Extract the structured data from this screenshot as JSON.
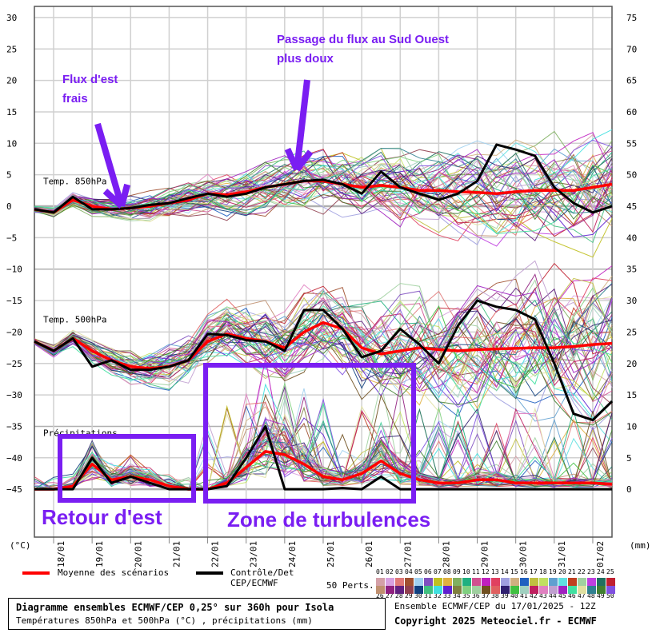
{
  "chart_data": {
    "type": "line",
    "title": "Diagramme ensembles ECMWF/CEP 0,25° sur 360h pour Isola",
    "subtitle": "Températures 850hPa et 500hPa (°C) , précipitations (mm)",
    "left_axis_label": "(°C)",
    "right_axis_label": "(mm)",
    "left_ticks": [
      30,
      25,
      20,
      15,
      10,
      5,
      0,
      -5,
      -10,
      -15,
      -20,
      -25,
      -30,
      -35,
      -40,
      -45
    ],
    "right_ticks": [
      75,
      70,
      65,
      60,
      55,
      50,
      45,
      40,
      35,
      30,
      25,
      20,
      15,
      10,
      5,
      0
    ],
    "ylim_left": [
      -52.5,
      31
    ],
    "x_labels": [
      "18/01",
      "19/01",
      "20/01",
      "21/01",
      "22/01",
      "23/01",
      "24/01",
      "25/01",
      "26/01",
      "27/01",
      "28/01",
      "29/01",
      "30/01",
      "31/01",
      "01/02"
    ],
    "x_step_hours": 12,
    "x_start": "17/01 12Z",
    "panel_labels": [
      "Temp. 850hPa",
      "Temp. 500hPa",
      "Précipitations"
    ],
    "series": [
      {
        "name": "Moyenne 850hPa",
        "color": "#ff0000",
        "values": [
          -0.5,
          -1,
          1,
          0,
          -0.5,
          -0.3,
          0,
          0.5,
          1,
          2,
          1.8,
          2.3,
          3,
          3.5,
          4,
          4,
          3.5,
          3,
          3.3,
          3,
          2.5,
          2.5,
          2.3,
          2.2,
          2,
          2.3,
          2.5,
          2.5,
          2.5,
          3,
          3.5
        ]
      },
      {
        "name": "Contrôle 850hPa",
        "color": "#000000",
        "values": [
          -0.5,
          -1,
          1.5,
          -0.5,
          -0.5,
          -0.3,
          0.2,
          0.5,
          1.3,
          2,
          1.5,
          2,
          3,
          3.5,
          4,
          4.2,
          3.5,
          2,
          5.5,
          3,
          2,
          1,
          2,
          4,
          9.8,
          9,
          8,
          3,
          0.5,
          -1,
          0
        ]
      },
      {
        "name": "Moyenne 500hPa",
        "color": "#ff0000",
        "values": [
          -21.5,
          -23,
          -21,
          -23,
          -24.5,
          -25.5,
          -25.8,
          -25.5,
          -24.5,
          -21.5,
          -20.3,
          -21,
          -21.5,
          -22.5,
          -20,
          -18.5,
          -19.5,
          -22.5,
          -23.5,
          -23,
          -22.5,
          -22.8,
          -23,
          -22.8,
          -22.7,
          -22.6,
          -22.5,
          -22.5,
          -22.3,
          -22,
          -21.8
        ]
      },
      {
        "name": "Contrôle 500hPa",
        "color": "#000000",
        "values": [
          -21.5,
          -23,
          -21,
          -25.5,
          -24.5,
          -26,
          -26,
          -25.5,
          -24.5,
          -20.3,
          -20.5,
          -21.3,
          -21.5,
          -23,
          -16.5,
          -16.5,
          -19.5,
          -24,
          -23,
          -19.5,
          -22,
          -25,
          -19,
          -15,
          -16,
          -16.5,
          -18,
          -25,
          -33,
          -34,
          -31
        ]
      },
      {
        "name": "Moyenne précipitations",
        "color": "#ff0000",
        "axis": "right",
        "values": [
          0,
          0,
          0.5,
          4,
          1.5,
          2,
          1.5,
          0.5,
          0,
          0,
          1,
          3.5,
          6,
          5.5,
          4,
          2,
          1.5,
          2.5,
          4.5,
          2.5,
          1.5,
          1,
          1,
          1.5,
          1.5,
          1,
          1,
          1,
          1,
          1,
          0.8
        ]
      },
      {
        "name": "Contrôle précipitations",
        "color": "#000000",
        "axis": "right",
        "values": [
          0,
          0,
          0,
          5,
          1,
          2,
          1,
          0,
          0,
          0,
          0.5,
          5,
          10,
          0,
          0,
          0,
          0.2,
          0,
          2,
          0,
          0,
          0,
          0,
          0,
          0,
          0,
          0,
          0,
          0,
          0,
          0
        ]
      }
    ],
    "ensemble_members": 50
  },
  "legend": {
    "mean_label": "Moyenne des scénarios",
    "control_label_1": "Contrôle/Det",
    "control_label_2": "CEP/ECMWF",
    "perts_label": "50 Perts.",
    "member_numbers_top": [
      "01",
      "02",
      "03",
      "04",
      "05",
      "06",
      "07",
      "08",
      "09",
      "10",
      "11",
      "12",
      "13",
      "14",
      "15",
      "16",
      "17",
      "18",
      "19",
      "20",
      "21",
      "22",
      "23",
      "24",
      "25"
    ],
    "member_numbers_bottom": [
      "26",
      "27",
      "28",
      "29",
      "30",
      "31",
      "32",
      "33",
      "34",
      "35",
      "36",
      "37",
      "38",
      "39",
      "40",
      "41",
      "42",
      "43",
      "44",
      "45",
      "46",
      "47",
      "48",
      "49",
      "50"
    ],
    "member_colors_top": [
      "#d4a0a8",
      "#d8a0e0",
      "#e07878",
      "#a05030",
      "#a0d0f0",
      "#8050c0",
      "#c0c020",
      "#e0b040",
      "#80b060",
      "#20b080",
      "#d05090",
      "#c020c0",
      "#e04060",
      "#a0a0e0",
      "#d0b080",
      "#2060c0",
      "#c0c040",
      "#c0e060",
      "#60a0d0",
      "#60e0e0",
      "#c04020",
      "#a0d0a0",
      "#c040e0",
      "#207060",
      "#c02030"
    ],
    "member_colors_bottom": [
      "#c09070",
      "#902080",
      "#602080",
      "#904050",
      "#104080",
      "#40c080",
      "#40e0e0",
      "#6020d0",
      "#808040",
      "#80d080",
      "#a0d0a0",
      "#705020",
      "#e06060",
      "#302070",
      "#40c040",
      "#a0d0c0",
      "#c02060",
      "#e080c0",
      "#c0a0d0",
      "#a020c0",
      "#40e0a0",
      "#e0e0a0",
      "#308090",
      "#408030",
      "#8050e0"
    ]
  },
  "annotations": {
    "flux_est_1": "Flux d'est",
    "flux_est_2": "frais",
    "passage_1": "Passage du flux au Sud Ouest",
    "passage_2": "plus doux",
    "retour": "Retour d'est",
    "zone": "Zone de turbulences",
    "color": "#7a1ef2"
  },
  "footer": {
    "title": "Diagramme ensembles ECMWF/CEP 0,25° sur 360h pour Isola",
    "subtitle": "Températures 850hPa et 500hPa (°C) , précipitations (mm)",
    "run": "Ensemble ECMWF/CEP du 17/01/2025 - 12Z",
    "copyright": "Copyright 2025 Meteociel.fr - ECMWF"
  }
}
